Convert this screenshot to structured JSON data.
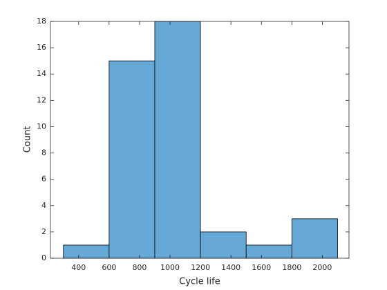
{
  "chart_data": {
    "type": "histogram",
    "x_label": "Cycle life",
    "y_label": "Count",
    "bins": [
      300,
      600,
      900,
      1200,
      1500,
      1800,
      2100
    ],
    "counts": [
      1,
      15,
      18,
      2,
      1,
      3
    ],
    "color": "#66a9d7",
    "xlim": [
      215,
      2175
    ],
    "xticks": [
      400,
      600,
      800,
      1000,
      1200,
      1400,
      1600,
      1800,
      2000
    ],
    "ylim": [
      0,
      18
    ],
    "yticks": [
      0,
      2,
      4,
      6,
      8,
      10,
      12,
      14,
      16,
      18
    ],
    "grid": false
  }
}
